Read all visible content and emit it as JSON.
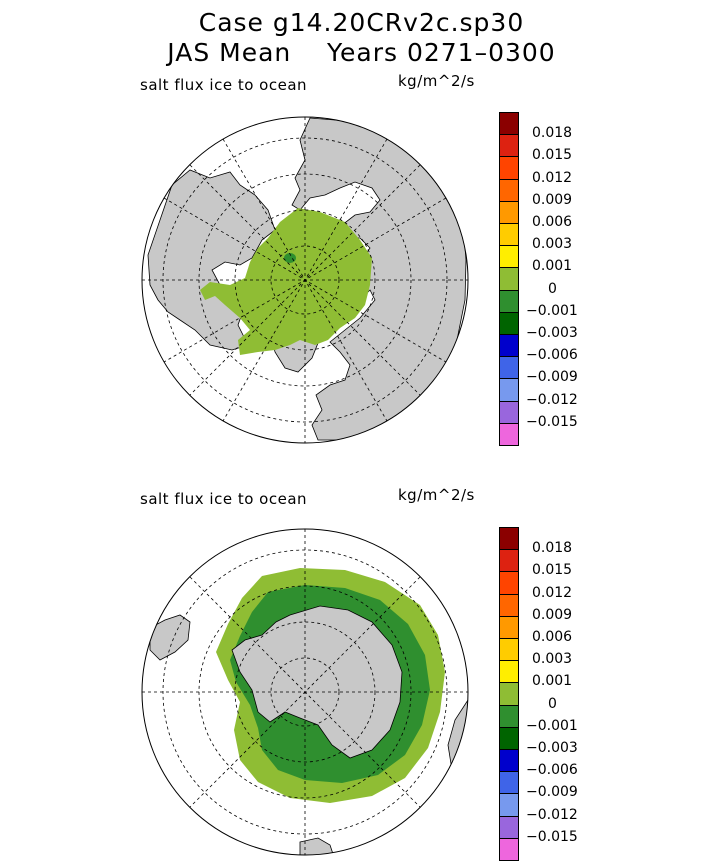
{
  "title_line1": "Case g14.20CRv2c.sp30",
  "title_line2": "JAS Mean    Years 0271–0300",
  "panels": [
    {
      "id": "north",
      "label": "salt flux ice to ocean",
      "units": "kg/m^2/s"
    },
    {
      "id": "south",
      "label": "salt flux ice to ocean",
      "units": "kg/m^2/s"
    }
  ],
  "colorbar": {
    "colors": [
      "#8b0000",
      "#dd2211",
      "#ff4400",
      "#ff6600",
      "#ff9900",
      "#ffcc00",
      "#ffee00",
      "#8fbd34",
      "#2f8f2f",
      "#006400",
      "#0000cc",
      "#3f64e8",
      "#7799ee",
      "#9966dd",
      "#ee66dd"
    ],
    "labels": [
      "0.018",
      "0.015",
      "0.012",
      "0.009",
      "0.006",
      "0.003",
      "0.001",
      "0",
      "−0.001",
      "−0.003",
      "−0.006",
      "−0.009",
      "−0.012",
      "−0.015"
    ]
  },
  "map_colors": {
    "land": "#c8c8c8",
    "ocean": "#ffffff",
    "ice_positive": "#8fbd34",
    "ice_near_zero": "#2f8f2f"
  }
}
